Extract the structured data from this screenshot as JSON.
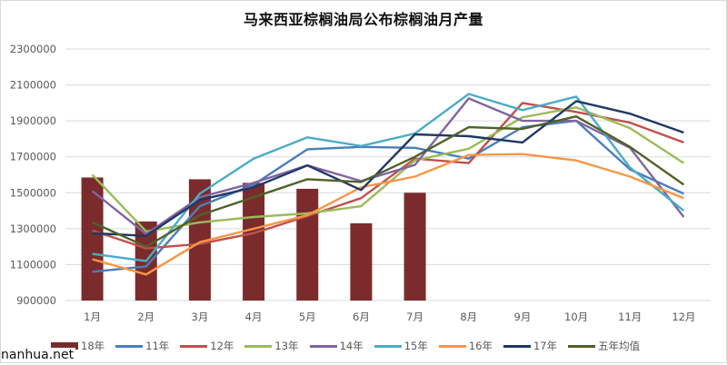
{
  "chart_data": {
    "type": "bar+line",
    "title": "马来西亚棕榈油局公布棕榈油月产量",
    "xlabel": "",
    "ylabel": "",
    "ylim": [
      900000,
      2300000
    ],
    "yticks": [
      "2300000",
      "2100000",
      "1900000",
      "1700000",
      "1500000",
      "1300000",
      "1100000",
      "900000"
    ],
    "grid": true,
    "legend_position": "bottom",
    "categories": [
      "1月",
      "2月",
      "3月",
      "4月",
      "5月",
      "6月",
      "7月",
      "8月",
      "9月",
      "10月",
      "11月",
      "12月"
    ],
    "series": [
      {
        "name": "18年",
        "type": "bar",
        "color": "#7b2b2b",
        "values": [
          1585000,
          1340000,
          1575000,
          1555000,
          1522000,
          1330000,
          1500000,
          null,
          null,
          null,
          null,
          null
        ]
      },
      {
        "name": "11年",
        "type": "line",
        "color": "#4a7ebb",
        "values": [
          1060000,
          1090000,
          1425000,
          1545000,
          1742000,
          1755000,
          1750000,
          1690000,
          1865000,
          1900000,
          1630000,
          1495000
        ]
      },
      {
        "name": "12年",
        "type": "line",
        "color": "#c0504d",
        "values": [
          1290000,
          1190000,
          1215000,
          1275000,
          1370000,
          1470000,
          1690000,
          1665000,
          2000000,
          1950000,
          1890000,
          1780000
        ]
      },
      {
        "name": "13年",
        "type": "line",
        "color": "#9bbb59",
        "values": [
          1600000,
          1285000,
          1335000,
          1365000,
          1385000,
          1425000,
          1680000,
          1745000,
          1920000,
          1975000,
          1860000,
          1665000
        ]
      },
      {
        "name": "14年",
        "type": "line",
        "color": "#8064a2",
        "values": [
          1510000,
          1270000,
          1475000,
          1555000,
          1652000,
          1565000,
          1655000,
          2025000,
          1900000,
          1900000,
          1750000,
          1365000
        ]
      },
      {
        "name": "15年",
        "type": "line",
        "color": "#4bacc6",
        "values": [
          1160000,
          1120000,
          1495000,
          1690000,
          1808000,
          1760000,
          1830000,
          2050000,
          1960000,
          2035000,
          1640000,
          1400000
        ]
      },
      {
        "name": "16年",
        "type": "line",
        "color": "#f79646",
        "values": [
          1130000,
          1045000,
          1225000,
          1300000,
          1375000,
          1530000,
          1590000,
          1710000,
          1715000,
          1680000,
          1590000,
          1470000
        ]
      },
      {
        "name": "17年",
        "type": "line",
        "color": "#1f3864",
        "values": [
          1275000,
          1260000,
          1460000,
          1530000,
          1652000,
          1515000,
          1825000,
          1815000,
          1780000,
          2010000,
          1940000,
          1835000
        ]
      },
      {
        "name": "五年均值",
        "type": "line",
        "color": "#4f6228",
        "values": [
          1335000,
          1200000,
          1375000,
          1475000,
          1575000,
          1560000,
          1700000,
          1865000,
          1855000,
          1925000,
          1755000,
          1545000
        ]
      }
    ]
  },
  "watermark": "nanhua.net"
}
